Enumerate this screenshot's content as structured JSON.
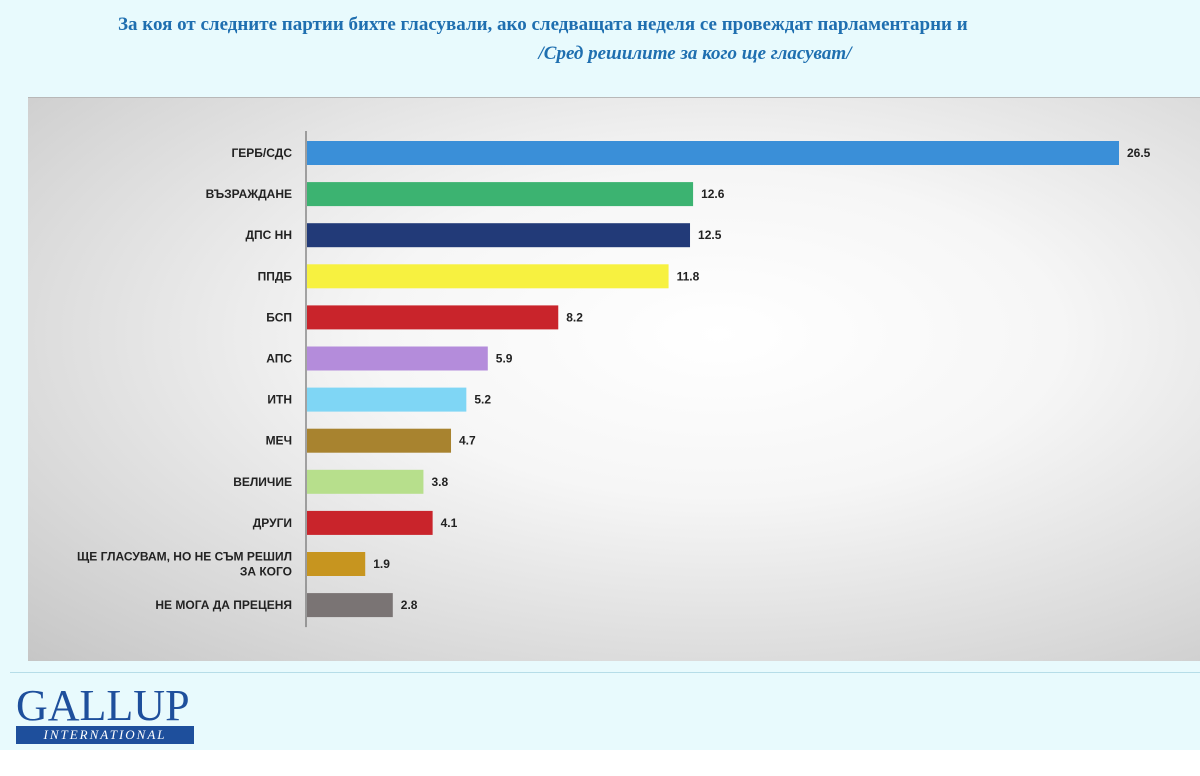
{
  "title": {
    "line1": "За коя от следните партии бихте гласували, ако следващата неделя се провеждат парламентарни и",
    "line2": "/Сред решилите за кого ще гласуват/"
  },
  "logo": {
    "main": "GALLUP",
    "sub": "INTERNATIONAL"
  },
  "chart_data": {
    "type": "bar",
    "orientation": "horizontal",
    "title": "",
    "xlabel": "",
    "ylabel": "",
    "xlim": [
      0,
      26.5
    ],
    "grid": false,
    "legend": "none",
    "categories": [
      [
        "ГЕРБ/СДС"
      ],
      [
        "ВЪЗРАЖДАНЕ"
      ],
      [
        "ДПС НН"
      ],
      [
        "ППДБ"
      ],
      [
        "БСП"
      ],
      [
        "АПС"
      ],
      [
        "ИТН"
      ],
      [
        "МЕЧ"
      ],
      [
        "ВЕЛИЧИЕ"
      ],
      [
        "ДРУГИ"
      ],
      [
        "ЩЕ ГЛАСУВАМ, НО НЕ СЪМ РЕШИЛ",
        "ЗА КОГО"
      ],
      [
        "НЕ МОГА ДА ПРЕЦЕНЯ"
      ]
    ],
    "values": [
      26.5,
      12.6,
      12.5,
      11.8,
      8.2,
      5.9,
      5.2,
      4.7,
      3.8,
      4.1,
      1.9,
      2.8
    ],
    "value_labels": [
      "26.5",
      "12.6",
      "12.5",
      "11.8",
      "8.2",
      "5.9",
      "5.2",
      "4.7",
      "3.8",
      "4.1",
      "1.9",
      "2.8"
    ],
    "colors": [
      "#3a8fd8",
      "#3cb371",
      "#223a78",
      "#f7f140",
      "#c9242b",
      "#b48cdb",
      "#7fd6f5",
      "#a8832f",
      "#b7df8c",
      "#c9242b",
      "#c7951f",
      "#7a7474"
    ]
  }
}
